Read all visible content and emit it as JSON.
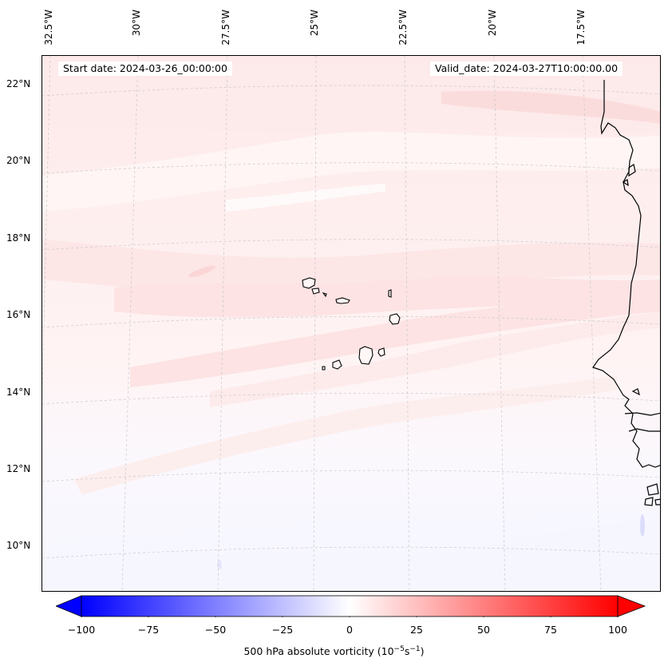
{
  "header": {
    "start_date": "Start date: 2024-03-26_00:00:00",
    "valid_date": "Valid_date: 2024-03-27T10:00:00.00"
  },
  "axes": {
    "lon_labels": [
      "32.5°W",
      "30°W",
      "27.5°W",
      "25°W",
      "22.5°W",
      "20°W",
      "17.5°W"
    ],
    "lat_labels": [
      "22°N",
      "20°N",
      "18°N",
      "16°N",
      "14°N",
      "12°N",
      "10°N"
    ],
    "gridlines": "dashed-light-gray"
  },
  "colorbar": {
    "ticks": [
      "−100",
      "−75",
      "−50",
      "−25",
      "0",
      "25",
      "50",
      "75",
      "100"
    ],
    "label_text": "500 hPa absolute vorticity (10",
    "label_exp1": "−5",
    "label_mid": "s",
    "label_exp2": "−1",
    "label_end": ")",
    "min": -100,
    "max": 100,
    "colormap": "bwr",
    "colors": {
      "neg": "#0000ff",
      "zero": "#ffffff",
      "pos": "#ff0000"
    }
  },
  "map": {
    "region": "Cape Verde and West African coast",
    "land_outline_color": "#000000",
    "field_tint_north": "#fde6e6",
    "field_tint_south": "#f6f7ff"
  }
}
